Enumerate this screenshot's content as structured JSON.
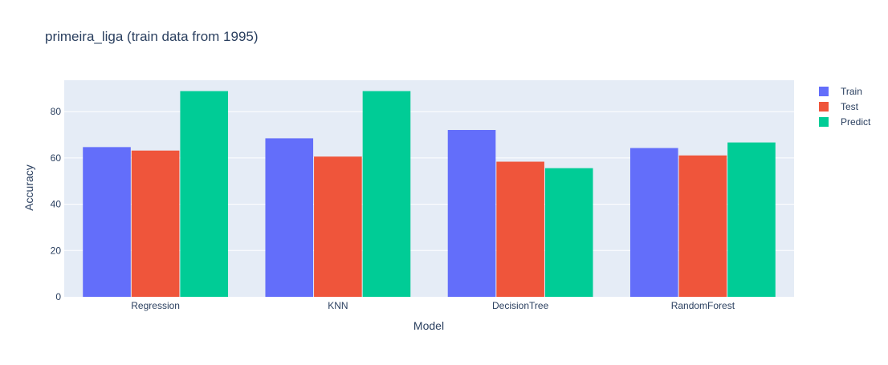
{
  "chart_data": {
    "type": "bar",
    "title": "primeira_liga (train data from 1995)",
    "xlabel": "Model",
    "ylabel": "Accuracy",
    "categories": [
      "Regression",
      "KNN",
      "DecisionTree",
      "RandomForest"
    ],
    "series": [
      {
        "name": "Train",
        "color": "#636efa",
        "values": [
          64.7,
          68.5,
          72.1,
          64.3
        ]
      },
      {
        "name": "Test",
        "color": "#ef553b",
        "values": [
          63.2,
          60.6,
          58.4,
          61.1
        ]
      },
      {
        "name": "Predict",
        "color": "#00cc96",
        "values": [
          88.9,
          88.9,
          55.6,
          66.7
        ]
      }
    ],
    "ylim": [
      0,
      93.6
    ],
    "yticks": [
      0,
      20,
      40,
      60,
      80
    ],
    "grid": true,
    "legend_position": "top-right",
    "colors": {
      "plot_background": "#e5ecf6",
      "gridline": "#ffffff",
      "text": "#2a3f5f"
    }
  }
}
